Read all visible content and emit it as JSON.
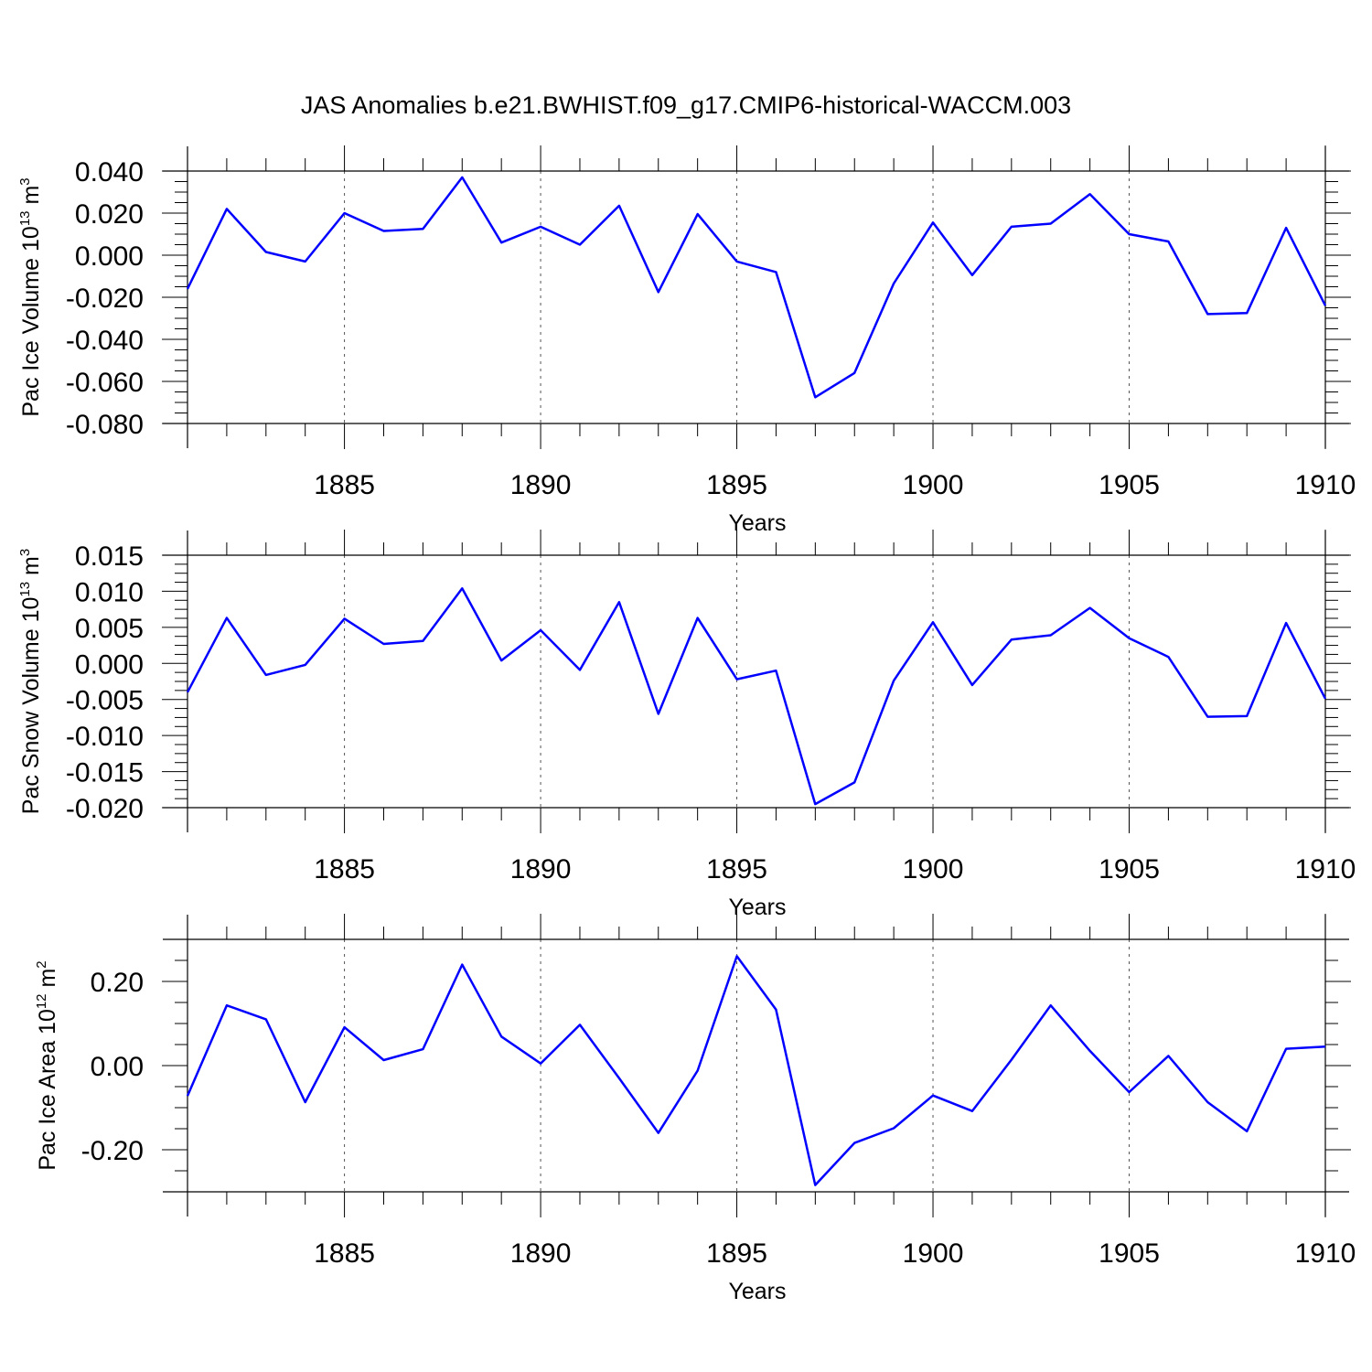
{
  "title": "JAS Anomalies b.e21.BWHIST.f09_g17.CMIP6-historical-WACCM.003",
  "colors": {
    "line": "#0000ff",
    "axis": "#000000",
    "grid": "#555555"
  },
  "chart_data": [
    {
      "type": "line",
      "ylabel": "Pac Ice Volume 10",
      "ylabel_exp": "13",
      "ylabel_unit": " m",
      "ylabel_unit_exp": "3",
      "xlabel": "Years",
      "xlim": [
        1881,
        1910
      ],
      "ylim": [
        -0.08,
        0.04
      ],
      "yticks": [
        -0.08,
        -0.06,
        -0.04,
        -0.02,
        0.0,
        0.02,
        0.04
      ],
      "ytick_labels": [
        "-0.080",
        "-0.060",
        "-0.040",
        "-0.020",
        "0.000",
        "0.020",
        "0.040"
      ],
      "xticks": [
        1885,
        1890,
        1895,
        1900,
        1905,
        1910
      ],
      "xtick_labels": [
        "1885",
        "1890",
        "1895",
        "1900",
        "1905",
        "1910"
      ],
      "grid": "vertical dashed at major x ticks",
      "series": [
        {
          "name": "Pac Ice Volume",
          "x": [
            1881,
            1882,
            1883,
            1884,
            1885,
            1886,
            1887,
            1888,
            1889,
            1890,
            1891,
            1892,
            1893,
            1894,
            1895,
            1896,
            1897,
            1898,
            1899,
            1900,
            1901,
            1902,
            1903,
            1904,
            1905,
            1906,
            1907,
            1908,
            1909,
            1910
          ],
          "values": [
            -0.016,
            0.022,
            0.0015,
            -0.003,
            0.02,
            0.0115,
            0.0125,
            0.037,
            0.006,
            0.0135,
            0.005,
            0.0235,
            -0.0175,
            0.0195,
            -0.003,
            -0.008,
            -0.0675,
            -0.056,
            -0.0135,
            0.0155,
            -0.0095,
            0.0135,
            0.015,
            0.029,
            0.01,
            0.0065,
            -0.028,
            -0.0275,
            0.013,
            -0.024
          ]
        }
      ]
    },
    {
      "type": "line",
      "ylabel": "Pac Snow Volume 10",
      "ylabel_exp": "13",
      "ylabel_unit": " m",
      "ylabel_unit_exp": "3",
      "xlabel": "Years",
      "xlim": [
        1881,
        1910
      ],
      "ylim": [
        -0.02,
        0.015
      ],
      "yticks": [
        -0.02,
        -0.015,
        -0.01,
        -0.005,
        0.0,
        0.005,
        0.01,
        0.015
      ],
      "ytick_labels": [
        "-0.020",
        "-0.015",
        "-0.010",
        "-0.005",
        "0.000",
        "0.005",
        "0.010",
        "0.015"
      ],
      "xticks": [
        1885,
        1890,
        1895,
        1900,
        1905,
        1910
      ],
      "xtick_labels": [
        "1885",
        "1890",
        "1895",
        "1900",
        "1905",
        "1910"
      ],
      "grid": "vertical dashed at major x ticks",
      "series": [
        {
          "name": "Pac Snow Volume",
          "x": [
            1881,
            1882,
            1883,
            1884,
            1885,
            1886,
            1887,
            1888,
            1889,
            1890,
            1891,
            1892,
            1893,
            1894,
            1895,
            1896,
            1897,
            1898,
            1899,
            1900,
            1901,
            1902,
            1903,
            1904,
            1905,
            1906,
            1907,
            1908,
            1909,
            1910
          ],
          "values": [
            -0.004,
            0.0063,
            -0.0016,
            -0.0002,
            0.0062,
            0.0027,
            0.0031,
            0.0104,
            0.0004,
            0.0046,
            -0.0009,
            0.0085,
            -0.007,
            0.0063,
            -0.0022,
            -0.001,
            -0.0195,
            -0.0165,
            -0.0024,
            0.0057,
            -0.003,
            0.0033,
            0.0039,
            0.0077,
            0.0035,
            0.0009,
            -0.0074,
            -0.0073,
            0.0056,
            -0.0049
          ]
        }
      ]
    },
    {
      "type": "line",
      "ylabel": "Pac Ice Area 10",
      "ylabel_exp": "12",
      "ylabel_unit": " m",
      "ylabel_unit_exp": "2",
      "xlabel": "Years",
      "xlim": [
        1881,
        1910
      ],
      "ylim": [
        -0.3,
        0.3
      ],
      "yticks": [
        -0.2,
        0.0,
        0.2
      ],
      "ytick_labels": [
        "-0.20",
        "0.00",
        "0.20"
      ],
      "xticks": [
        1885,
        1890,
        1895,
        1900,
        1905,
        1910
      ],
      "xtick_labels": [
        "1885",
        "1890",
        "1895",
        "1900",
        "1905",
        "1910"
      ],
      "grid": "vertical dashed at major x ticks",
      "series": [
        {
          "name": "Pac Ice Area",
          "x": [
            1881,
            1882,
            1883,
            1884,
            1885,
            1886,
            1887,
            1888,
            1889,
            1890,
            1891,
            1892,
            1893,
            1894,
            1895,
            1896,
            1897,
            1898,
            1899,
            1900,
            1901,
            1902,
            1903,
            1904,
            1905,
            1906,
            1907,
            1908,
            1909,
            1910
          ],
          "values": [
            -0.072,
            0.143,
            0.11,
            -0.087,
            0.091,
            0.013,
            0.039,
            0.24,
            0.069,
            0.005,
            0.097,
            -0.03,
            -0.16,
            -0.012,
            0.26,
            0.133,
            -0.284,
            -0.184,
            -0.149,
            -0.071,
            -0.108,
            0.014,
            0.143,
            0.035,
            -0.063,
            0.023,
            -0.087,
            -0.156,
            0.04,
            0.045
          ]
        }
      ]
    }
  ]
}
